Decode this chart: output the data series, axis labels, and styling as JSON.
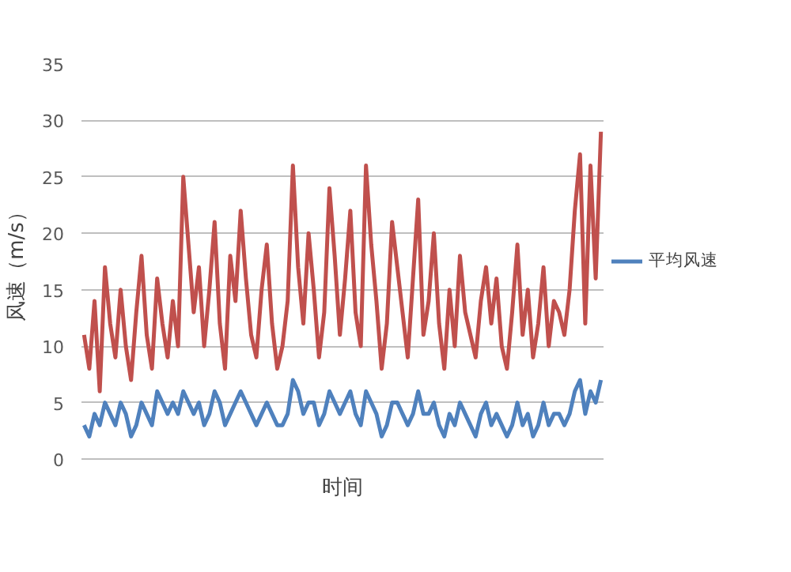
{
  "chart_data": {
    "type": "line",
    "ylabel": "风速（m/s）",
    "xlabel": "时间",
    "categories": [
      null,
      null,
      null,
      null,
      null,
      null,
      null,
      null,
      null,
      null,
      null,
      null,
      null,
      null,
      null,
      null,
      null,
      null,
      null,
      null,
      null,
      null,
      null,
      null,
      null,
      null,
      null,
      null,
      null,
      null,
      null,
      null,
      null,
      null,
      null,
      null,
      null,
      null,
      null,
      null,
      null,
      null,
      null,
      null,
      null,
      null,
      null,
      null,
      null,
      null,
      null,
      null,
      null,
      null,
      null,
      null,
      null,
      null,
      null,
      null,
      null,
      null,
      null,
      null,
      null,
      null,
      null,
      null,
      null,
      null,
      null,
      null,
      null,
      null,
      null,
      null,
      null,
      null,
      null,
      null,
      null,
      null,
      null,
      null,
      null,
      null,
      null,
      null,
      null,
      null,
      null,
      null,
      null,
      null,
      null,
      null,
      null,
      null,
      null,
      null
    ],
    "series": [
      {
        "color": "#c0504d",
        "values": [
          11,
          8,
          14,
          6,
          17,
          12,
          9,
          15,
          10,
          7,
          13,
          18,
          11,
          8,
          16,
          12,
          9,
          14,
          10,
          25,
          19,
          13,
          17,
          10,
          15,
          21,
          12,
          8,
          18,
          14,
          22,
          16,
          11,
          9,
          15,
          19,
          12,
          8,
          10,
          14,
          26,
          17,
          12,
          20,
          15,
          9,
          13,
          24,
          18,
          11,
          16,
          22,
          13,
          10,
          26,
          19,
          14,
          8,
          12,
          21,
          17,
          13,
          9,
          16,
          23,
          11,
          14,
          20,
          12,
          8,
          15,
          10,
          18,
          13,
          11,
          9,
          14,
          17,
          12,
          16,
          10,
          8,
          13,
          19,
          11,
          15,
          9,
          12,
          17,
          10,
          14,
          13,
          11,
          15,
          22,
          27,
          12,
          26,
          16,
          29
        ]
      },
      {
        "color": "#4f81bd",
        "name": "平均风速",
        "values": [
          3,
          2,
          4,
          3,
          5,
          4,
          3,
          5,
          4,
          2,
          3,
          5,
          4,
          3,
          6,
          5,
          4,
          5,
          4,
          6,
          5,
          4,
          5,
          3,
          4,
          6,
          5,
          3,
          4,
          5,
          6,
          5,
          4,
          3,
          4,
          5,
          4,
          3,
          3,
          4,
          7,
          6,
          4,
          5,
          5,
          3,
          4,
          6,
          5,
          4,
          5,
          6,
          4,
          3,
          6,
          5,
          4,
          2,
          3,
          5,
          5,
          4,
          3,
          4,
          6,
          4,
          4,
          5,
          3,
          2,
          4,
          3,
          5,
          4,
          3,
          2,
          4,
          5,
          3,
          4,
          3,
          2,
          3,
          5,
          3,
          4,
          2,
          3,
          5,
          3,
          4,
          4,
          3,
          4,
          6,
          7,
          4,
          6,
          5,
          7
        ]
      }
    ],
    "ylim": [
      0,
      35
    ],
    "yticks": [
      0,
      5,
      10,
      15,
      20,
      25,
      30,
      35
    ],
    "grid": "y",
    "legend": "right",
    "tick_labels": "y"
  }
}
